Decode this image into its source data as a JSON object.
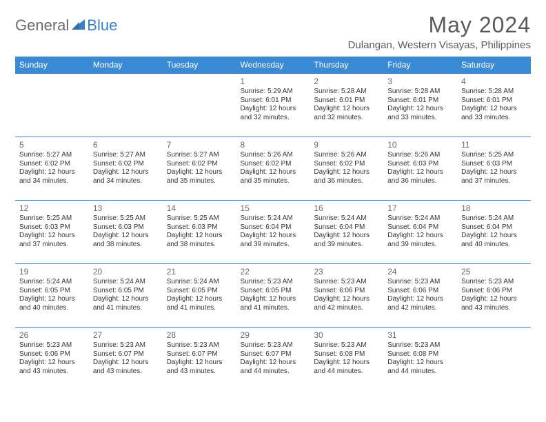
{
  "logo": {
    "text_general": "General",
    "text_blue": "Blue",
    "shape_color": "#3b7fc4"
  },
  "header": {
    "month_title": "May 2024",
    "location": "Dulangan, Western Visayas, Philippines"
  },
  "colors": {
    "header_bg": "#3b8bd4",
    "header_text": "#ffffff",
    "row_border": "#3b7fc4",
    "daynum": "#6a6a6a",
    "body_text": "#333333",
    "title_text": "#5a5a5a",
    "page_bg": "#ffffff"
  },
  "calendar": {
    "day_headers": [
      "Sunday",
      "Monday",
      "Tuesday",
      "Wednesday",
      "Thursday",
      "Friday",
      "Saturday"
    ],
    "weeks": [
      [
        null,
        null,
        null,
        {
          "n": "1",
          "sr": "Sunrise: 5:29 AM",
          "ss": "Sunset: 6:01 PM",
          "d1": "Daylight: 12 hours",
          "d2": "and 32 minutes."
        },
        {
          "n": "2",
          "sr": "Sunrise: 5:28 AM",
          "ss": "Sunset: 6:01 PM",
          "d1": "Daylight: 12 hours",
          "d2": "and 32 minutes."
        },
        {
          "n": "3",
          "sr": "Sunrise: 5:28 AM",
          "ss": "Sunset: 6:01 PM",
          "d1": "Daylight: 12 hours",
          "d2": "and 33 minutes."
        },
        {
          "n": "4",
          "sr": "Sunrise: 5:28 AM",
          "ss": "Sunset: 6:01 PM",
          "d1": "Daylight: 12 hours",
          "d2": "and 33 minutes."
        }
      ],
      [
        {
          "n": "5",
          "sr": "Sunrise: 5:27 AM",
          "ss": "Sunset: 6:02 PM",
          "d1": "Daylight: 12 hours",
          "d2": "and 34 minutes."
        },
        {
          "n": "6",
          "sr": "Sunrise: 5:27 AM",
          "ss": "Sunset: 6:02 PM",
          "d1": "Daylight: 12 hours",
          "d2": "and 34 minutes."
        },
        {
          "n": "7",
          "sr": "Sunrise: 5:27 AM",
          "ss": "Sunset: 6:02 PM",
          "d1": "Daylight: 12 hours",
          "d2": "and 35 minutes."
        },
        {
          "n": "8",
          "sr": "Sunrise: 5:26 AM",
          "ss": "Sunset: 6:02 PM",
          "d1": "Daylight: 12 hours",
          "d2": "and 35 minutes."
        },
        {
          "n": "9",
          "sr": "Sunrise: 5:26 AM",
          "ss": "Sunset: 6:02 PM",
          "d1": "Daylight: 12 hours",
          "d2": "and 36 minutes."
        },
        {
          "n": "10",
          "sr": "Sunrise: 5:26 AM",
          "ss": "Sunset: 6:03 PM",
          "d1": "Daylight: 12 hours",
          "d2": "and 36 minutes."
        },
        {
          "n": "11",
          "sr": "Sunrise: 5:25 AM",
          "ss": "Sunset: 6:03 PM",
          "d1": "Daylight: 12 hours",
          "d2": "and 37 minutes."
        }
      ],
      [
        {
          "n": "12",
          "sr": "Sunrise: 5:25 AM",
          "ss": "Sunset: 6:03 PM",
          "d1": "Daylight: 12 hours",
          "d2": "and 37 minutes."
        },
        {
          "n": "13",
          "sr": "Sunrise: 5:25 AM",
          "ss": "Sunset: 6:03 PM",
          "d1": "Daylight: 12 hours",
          "d2": "and 38 minutes."
        },
        {
          "n": "14",
          "sr": "Sunrise: 5:25 AM",
          "ss": "Sunset: 6:03 PM",
          "d1": "Daylight: 12 hours",
          "d2": "and 38 minutes."
        },
        {
          "n": "15",
          "sr": "Sunrise: 5:24 AM",
          "ss": "Sunset: 6:04 PM",
          "d1": "Daylight: 12 hours",
          "d2": "and 39 minutes."
        },
        {
          "n": "16",
          "sr": "Sunrise: 5:24 AM",
          "ss": "Sunset: 6:04 PM",
          "d1": "Daylight: 12 hours",
          "d2": "and 39 minutes."
        },
        {
          "n": "17",
          "sr": "Sunrise: 5:24 AM",
          "ss": "Sunset: 6:04 PM",
          "d1": "Daylight: 12 hours",
          "d2": "and 39 minutes."
        },
        {
          "n": "18",
          "sr": "Sunrise: 5:24 AM",
          "ss": "Sunset: 6:04 PM",
          "d1": "Daylight: 12 hours",
          "d2": "and 40 minutes."
        }
      ],
      [
        {
          "n": "19",
          "sr": "Sunrise: 5:24 AM",
          "ss": "Sunset: 6:05 PM",
          "d1": "Daylight: 12 hours",
          "d2": "and 40 minutes."
        },
        {
          "n": "20",
          "sr": "Sunrise: 5:24 AM",
          "ss": "Sunset: 6:05 PM",
          "d1": "Daylight: 12 hours",
          "d2": "and 41 minutes."
        },
        {
          "n": "21",
          "sr": "Sunrise: 5:24 AM",
          "ss": "Sunset: 6:05 PM",
          "d1": "Daylight: 12 hours",
          "d2": "and 41 minutes."
        },
        {
          "n": "22",
          "sr": "Sunrise: 5:23 AM",
          "ss": "Sunset: 6:05 PM",
          "d1": "Daylight: 12 hours",
          "d2": "and 41 minutes."
        },
        {
          "n": "23",
          "sr": "Sunrise: 5:23 AM",
          "ss": "Sunset: 6:06 PM",
          "d1": "Daylight: 12 hours",
          "d2": "and 42 minutes."
        },
        {
          "n": "24",
          "sr": "Sunrise: 5:23 AM",
          "ss": "Sunset: 6:06 PM",
          "d1": "Daylight: 12 hours",
          "d2": "and 42 minutes."
        },
        {
          "n": "25",
          "sr": "Sunrise: 5:23 AM",
          "ss": "Sunset: 6:06 PM",
          "d1": "Daylight: 12 hours",
          "d2": "and 43 minutes."
        }
      ],
      [
        {
          "n": "26",
          "sr": "Sunrise: 5:23 AM",
          "ss": "Sunset: 6:06 PM",
          "d1": "Daylight: 12 hours",
          "d2": "and 43 minutes."
        },
        {
          "n": "27",
          "sr": "Sunrise: 5:23 AM",
          "ss": "Sunset: 6:07 PM",
          "d1": "Daylight: 12 hours",
          "d2": "and 43 minutes."
        },
        {
          "n": "28",
          "sr": "Sunrise: 5:23 AM",
          "ss": "Sunset: 6:07 PM",
          "d1": "Daylight: 12 hours",
          "d2": "and 43 minutes."
        },
        {
          "n": "29",
          "sr": "Sunrise: 5:23 AM",
          "ss": "Sunset: 6:07 PM",
          "d1": "Daylight: 12 hours",
          "d2": "and 44 minutes."
        },
        {
          "n": "30",
          "sr": "Sunrise: 5:23 AM",
          "ss": "Sunset: 6:08 PM",
          "d1": "Daylight: 12 hours",
          "d2": "and 44 minutes."
        },
        {
          "n": "31",
          "sr": "Sunrise: 5:23 AM",
          "ss": "Sunset: 6:08 PM",
          "d1": "Daylight: 12 hours",
          "d2": "and 44 minutes."
        },
        null
      ]
    ]
  }
}
